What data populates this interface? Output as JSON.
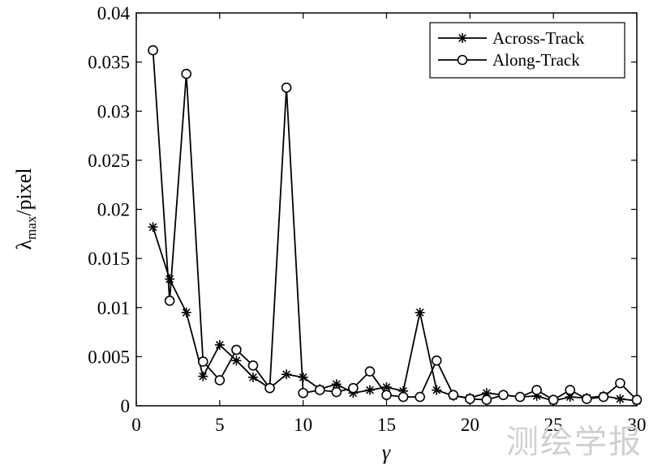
{
  "chart_data": {
    "type": "line",
    "xlabel": "γ",
    "ylabel_main": "λ",
    "ylabel_sub": "max",
    "ylabel_rest": "/pixel",
    "xlim": [
      0,
      30
    ],
    "ylim": [
      0,
      0.04
    ],
    "xticks": [
      "0",
      "5",
      "10",
      "15",
      "20",
      "25",
      "30"
    ],
    "yticks": [
      "0",
      "0.005",
      "0.01",
      "0.015",
      "0.02",
      "0.025",
      "0.03",
      "0.035",
      "0.04"
    ],
    "grid": false,
    "legend_position": "top-right",
    "x": [
      1,
      2,
      3,
      4,
      5,
      6,
      7,
      8,
      9,
      10,
      11,
      12,
      13,
      14,
      15,
      16,
      17,
      18,
      19,
      20,
      21,
      22,
      23,
      24,
      25,
      26,
      27,
      28,
      29,
      30
    ],
    "series": [
      {
        "name": "Across-Track",
        "marker": "asterisk",
        "values": [
          0.0182,
          0.0129,
          0.0095,
          0.003,
          0.0062,
          0.0046,
          0.0029,
          0.0018,
          0.0032,
          0.0029,
          0.0017,
          0.0022,
          0.0013,
          0.0016,
          0.0019,
          0.0015,
          0.0095,
          0.0016,
          0.001,
          0.0008,
          0.0013,
          0.0011,
          0.0009,
          0.001,
          0.0005,
          0.0009,
          0.0008,
          0.001,
          0.0007,
          0.0005
        ]
      },
      {
        "name": "Along-Track",
        "marker": "circle",
        "values": [
          0.0362,
          0.0107,
          0.0338,
          0.0045,
          0.0026,
          0.0057,
          0.0041,
          0.0018,
          0.0324,
          0.0013,
          0.0016,
          0.0014,
          0.0018,
          0.0035,
          0.0011,
          0.0009,
          0.0009,
          0.0046,
          0.0011,
          0.0007,
          0.0006,
          0.0011,
          0.0009,
          0.0016,
          0.0006,
          0.0016,
          0.0007,
          0.0009,
          0.0023,
          0.0006
        ]
      }
    ],
    "line_color": "#000000"
  },
  "watermark": "测绘学报"
}
